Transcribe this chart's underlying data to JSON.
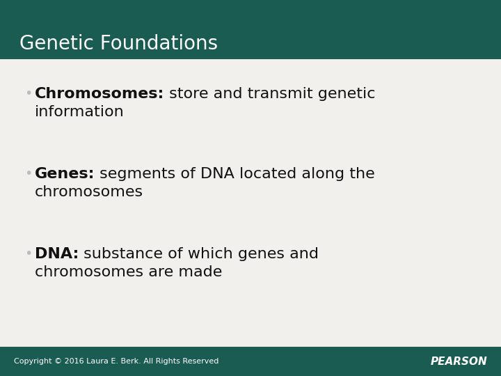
{
  "title": "Genetic Foundations",
  "title_bg_color": "#1a5c52",
  "title_text_color": "#ffffff",
  "body_bg_color": "#f2f0ed",
  "bullet_items": [
    {
      "bold_part": "Chromosomes:",
      "rest": " store and transmit genetic\ninformation"
    },
    {
      "bold_part": "Genes:",
      "rest": " segments of DNA located along the\nchromosomes"
    },
    {
      "bold_part": "DNA:",
      "rest": " substance of which genes and\nchromosomes are made"
    }
  ],
  "bullet_color": "#bbbbbb",
  "text_color": "#111111",
  "footer_text": "Copyright © 2016 Laura E. Berk. All Rights Reserved",
  "footer_brand": "PEARSON",
  "footer_bg_color": "#1a5c52",
  "footer_text_color": "#ffffff",
  "title_font_size": 20,
  "bullet_font_size": 16,
  "footer_font_size": 8,
  "footer_brand_font_size": 11
}
